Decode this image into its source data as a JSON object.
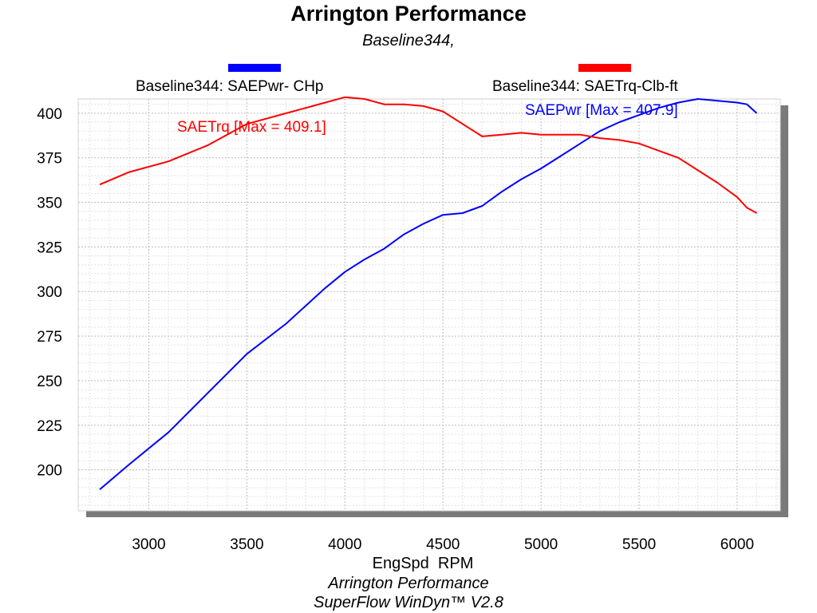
{
  "colors": {
    "power": "#0000ff",
    "torque": "#ff0000",
    "grid": "#c8c8c8",
    "shadow": "#7a7a7a"
  },
  "header": {
    "title": "Arrington Performance",
    "subtitle": "Baseline344,"
  },
  "legend": {
    "power_label": "Baseline344: SAEPwr- CHp",
    "torque_label": "Baseline344: SAETrq-Clb-ft"
  },
  "annotations": {
    "torque_max": "SAETrq [Max = 409.1]",
    "power_max": "SAEPwr [Max = 407.9]"
  },
  "footer": {
    "line1": "Arrington Performance",
    "line2": "SuperFlow WinDyn™ V2.8"
  },
  "chart_data": {
    "type": "line",
    "title": "Arrington Performance",
    "subtitle": "Baseline344,",
    "xlabel": "EngSpd  RPM",
    "ylabel": "",
    "xlim": [
      2640,
      6220
    ],
    "ylim": [
      177,
      408
    ],
    "x_ticks": [
      3000,
      3500,
      4000,
      4500,
      5000,
      5500,
      6000
    ],
    "y_ticks": [
      200,
      225,
      250,
      275,
      300,
      325,
      350,
      375,
      400
    ],
    "grid": true,
    "series": [
      {
        "name": "Baseline344: SAEPwr- CHp",
        "color": "#0000ff",
        "x": [
          2750,
          2900,
          3100,
          3300,
          3500,
          3700,
          3900,
          4000,
          4100,
          4200,
          4300,
          4400,
          4500,
          4600,
          4700,
          4800,
          4900,
          5000,
          5100,
          5200,
          5300,
          5400,
          5500,
          5600,
          5700,
          5800,
          5900,
          6000,
          6050,
          6100
        ],
        "values": [
          189,
          203,
          221,
          243,
          265,
          282,
          302,
          311,
          318,
          324,
          332,
          338,
          343,
          344,
          348,
          356,
          363,
          369,
          376,
          383,
          390,
          395,
          399,
          403,
          406,
          408,
          407,
          406,
          405,
          400
        ]
      },
      {
        "name": "Baseline344: SAETrq-Clb-ft",
        "color": "#ff0000",
        "x": [
          2750,
          2900,
          3100,
          3300,
          3500,
          3700,
          3900,
          4000,
          4100,
          4200,
          4300,
          4400,
          4500,
          4600,
          4700,
          4800,
          4900,
          5000,
          5100,
          5200,
          5300,
          5400,
          5500,
          5600,
          5700,
          5800,
          5900,
          6000,
          6050,
          6100
        ],
        "values": [
          360,
          367,
          373,
          382,
          394,
          400,
          406,
          409,
          408,
          405,
          405,
          404,
          401,
          394,
          387,
          388,
          389,
          388,
          388,
          388,
          386,
          385,
          383,
          379,
          375,
          368,
          361,
          353,
          347,
          344
        ]
      }
    ],
    "annotations": [
      "SAETrq [Max = 409.1]",
      "SAEPwr [Max = 407.9]"
    ],
    "legend_position": "top"
  }
}
